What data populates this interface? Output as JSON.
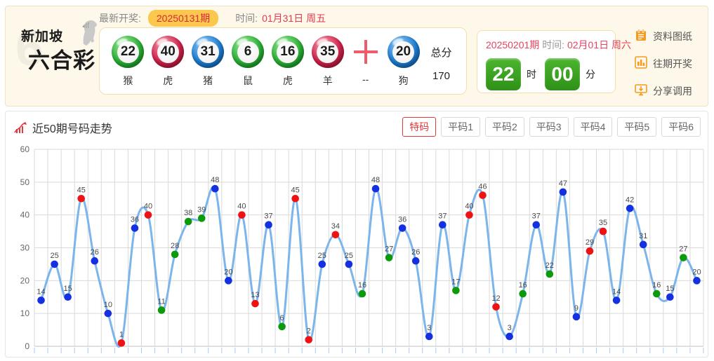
{
  "header": {
    "logo": {
      "line1": "新加坡",
      "line2": "六合彩",
      "watermark": "6"
    },
    "latest": {
      "label": "最新开奖:",
      "issue": "20250131期",
      "time_label": "时间:",
      "time": "01月31日 周五"
    },
    "balls": [
      {
        "num": "22",
        "zodiac": "猴",
        "color": "green"
      },
      {
        "num": "40",
        "zodiac": "虎",
        "color": "red"
      },
      {
        "num": "31",
        "zodiac": "猪",
        "color": "blue"
      },
      {
        "num": "6",
        "zodiac": "鼠",
        "color": "green"
      },
      {
        "num": "16",
        "zodiac": "虎",
        "color": "green"
      },
      {
        "num": "35",
        "zodiac": "羊",
        "color": "red"
      },
      {
        "num": "20",
        "zodiac": "狗",
        "color": "blue"
      }
    ],
    "plus_zodiac": "--",
    "total": {
      "label": "总分",
      "value": "170"
    },
    "next": {
      "issue": "20250201期",
      "time_label": "时间:",
      "time": "02月01日 周六",
      "hour": "22",
      "hour_label": "时",
      "minute": "00",
      "minute_label": "分"
    },
    "menu": [
      {
        "label": "资料图纸",
        "icon": "notebook-icon"
      },
      {
        "label": "往期开奖",
        "icon": "bar-chart-icon"
      },
      {
        "label": "分享调用",
        "icon": "share-monitor-icon"
      }
    ]
  },
  "chart_panel": {
    "title": "近50期号码走势",
    "tabs": [
      {
        "label": "特码",
        "active": true
      },
      {
        "label": "平码1",
        "active": false
      },
      {
        "label": "平码2",
        "active": false
      },
      {
        "label": "平码3",
        "active": false
      },
      {
        "label": "平码4",
        "active": false
      },
      {
        "label": "平码5",
        "active": false
      },
      {
        "label": "平码6",
        "active": false
      }
    ]
  },
  "chart_data": {
    "type": "line",
    "title": "近50期号码走势",
    "xlabel": "",
    "ylabel": "",
    "ylim": [
      0,
      60
    ],
    "yticks": [
      0,
      10,
      20,
      30,
      40,
      50,
      60
    ],
    "grid": true,
    "legend": "none",
    "n_points": 50,
    "line_color": "#7cb5ec",
    "grid_color": "#dadada",
    "axis_color": "#c2c2c2",
    "tick_color": "#a9c9ee",
    "point_colors": {
      "blue": "#1430e0",
      "red": "#ee1212",
      "green": "#0a9a0a"
    },
    "values": [
      14,
      25,
      15,
      45,
      26,
      10,
      1,
      36,
      40,
      11,
      28,
      38,
      39,
      48,
      20,
      40,
      13,
      37,
      6,
      45,
      2,
      25,
      34,
      25,
      16,
      48,
      27,
      36,
      26,
      3,
      37,
      17,
      40,
      46,
      12,
      3,
      16,
      37,
      22,
      47,
      9,
      29,
      35,
      14,
      42,
      31,
      16,
      15,
      27,
      20
    ],
    "colors": [
      "blue",
      "blue",
      "blue",
      "red",
      "blue",
      "blue",
      "red",
      "blue",
      "red",
      "green",
      "green",
      "green",
      "green",
      "blue",
      "blue",
      "red",
      "red",
      "blue",
      "green",
      "red",
      "red",
      "blue",
      "red",
      "blue",
      "green",
      "blue",
      "green",
      "blue",
      "blue",
      "blue",
      "blue",
      "green",
      "red",
      "red",
      "red",
      "blue",
      "green",
      "blue",
      "green",
      "blue",
      "blue",
      "red",
      "red",
      "blue",
      "blue",
      "blue",
      "green",
      "blue",
      "green",
      "blue"
    ]
  }
}
